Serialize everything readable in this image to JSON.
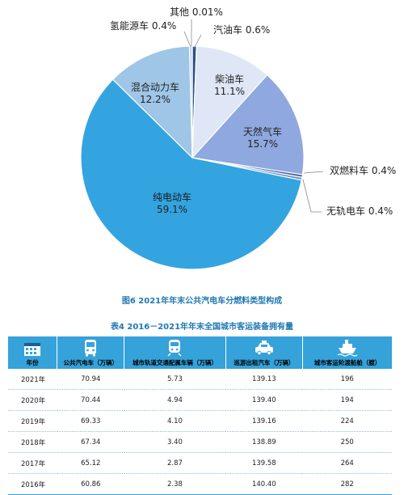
{
  "chart_data": {
    "type": "pie",
    "title": "图6  2021年年末公共汽电车分燃料类型构成",
    "slices": [
      {
        "label": "汽油车",
        "value": 0.6,
        "display": "汽油车 0.6%",
        "color": "#2e4f86"
      },
      {
        "label": "柴油车",
        "value": 11.1,
        "display": "11.1%",
        "color": "#dfe6f5"
      },
      {
        "label": "天然气车",
        "value": 15.7,
        "display": "15.7%",
        "color": "#8fa8df"
      },
      {
        "label": "双燃料车",
        "value": 0.4,
        "display": "双燃料车 0.4%",
        "color": "#4b67a8"
      },
      {
        "label": "无轨电车",
        "value": 0.4,
        "display": "无轨电车 0.4%",
        "color": "#6b8fc9"
      },
      {
        "label": "纯电动车",
        "value": 59.1,
        "display": "59.1%",
        "color": "#34a4e0"
      },
      {
        "label": "混合动力车",
        "value": 12.2,
        "display": "12.2%",
        "color": "#9fc5e7"
      },
      {
        "label": "氢能源车",
        "value": 0.4,
        "display": "氢能源车 0.4%",
        "color": "#bcd4ee"
      },
      {
        "label": "其他",
        "value": 0.01,
        "display": "其他 0.01%",
        "color": "#1c3f6e"
      }
    ]
  },
  "table": {
    "title": "表4  2016－2021年年末全国城市客运装备拥有量",
    "columns": [
      {
        "label": "年份",
        "icon": "calendar-icon"
      },
      {
        "label": "公共汽电车（万辆）",
        "icon": "bus-icon"
      },
      {
        "label": "城市轨道交通配属车辆（万辆）",
        "icon": "train-icon"
      },
      {
        "label": "巡游出租汽车（万辆）",
        "icon": "taxi-icon"
      },
      {
        "label": "城市客运轮渡船舶（艘）",
        "icon": "ship-icon"
      }
    ],
    "rows": [
      [
        "2021年",
        "70.94",
        "5.73",
        "139.13",
        "196"
      ],
      [
        "2020年",
        "70.44",
        "4.94",
        "139.40",
        "194"
      ],
      [
        "2019年",
        "69.33",
        "4.10",
        "139.16",
        "224"
      ],
      [
        "2018年",
        "67.34",
        "3.40",
        "138.89",
        "250"
      ],
      [
        "2017年",
        "65.12",
        "2.87",
        "139.58",
        "264"
      ],
      [
        "2016年",
        "60.86",
        "2.38",
        "140.40",
        "282"
      ]
    ]
  }
}
